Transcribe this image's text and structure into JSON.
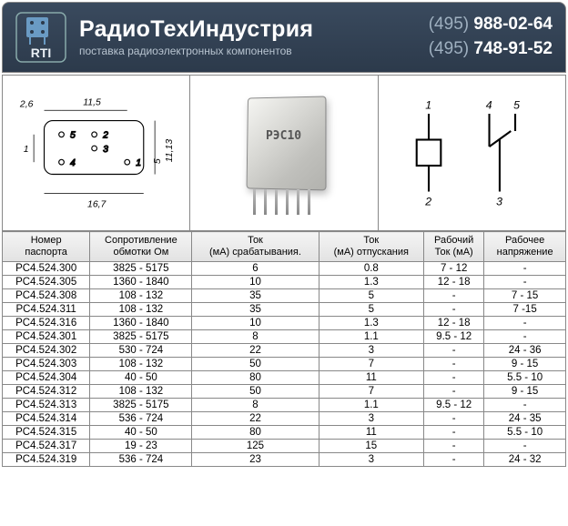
{
  "header": {
    "company_name": "РадиоТехИндустрия",
    "tagline": "поставка радиоэлектронных компонентов",
    "phones": [
      {
        "prefix": "(495)",
        "number": "988-02-64"
      },
      {
        "prefix": "(495)",
        "number": "748-91-52"
      }
    ],
    "logo_text": "RTI",
    "colors": {
      "header_bg_top": "#3a4a5e",
      "header_bg_bottom": "#2c3a4b",
      "text_light": "#ffffff",
      "text_muted": "#b8c4d0",
      "border": "#888888"
    }
  },
  "images": {
    "dimensions_drawing": {
      "values": [
        "2,6",
        "11,5",
        "16,7",
        "1",
        "5",
        "11,13"
      ],
      "pins": [
        "1",
        "2",
        "3",
        "4",
        "5"
      ]
    },
    "relay_label": "РЭС10",
    "schematic_pins": [
      "1",
      "2",
      "3",
      "4",
      "5"
    ]
  },
  "table": {
    "type": "table",
    "columns": [
      "Номер паспорта",
      "Сопротивление обмотки Ом",
      "Ток (мА) срабатывания.",
      "Ток (мА) отпускания",
      "Рабочий Ток (мА)",
      "Рабочее напряжение"
    ],
    "rows": [
      [
        "PC4.524.300",
        "3825 - 5175",
        "6",
        "0.8",
        "7 - 12",
        "-"
      ],
      [
        "PC4.524.305",
        "1360 - 1840",
        "10",
        "1.3",
        "12 - 18",
        "-"
      ],
      [
        "PC4.524.308",
        "108 - 132",
        "35",
        "5",
        "-",
        "7 - 15"
      ],
      [
        "PC4.524.311",
        "108 - 132",
        "35",
        "5",
        "-",
        "7 -15"
      ],
      [
        "PC4.524.316",
        "1360 - 1840",
        "10",
        "1.3",
        "12 - 18",
        "-"
      ],
      [
        "PC4.524.301",
        "3825 - 5175",
        "8",
        "1.1",
        "9.5 - 12",
        "-"
      ],
      [
        "PC4.524.302",
        "530 - 724",
        "22",
        "3",
        "-",
        "24 - 36"
      ],
      [
        "PC4.524.303",
        "108 - 132",
        "50",
        "7",
        "-",
        "9 - 15"
      ],
      [
        "PC4.524.304",
        "40 - 50",
        "80",
        "11",
        "-",
        "5.5 - 10"
      ],
      [
        "PC4.524.312",
        "108 - 132",
        "50",
        "7",
        "-",
        "9 - 15"
      ],
      [
        "PC4.524.313",
        "3825 - 5175",
        "8",
        "1.1",
        "9.5 - 12",
        "-"
      ],
      [
        "PC4.524.314",
        "536 - 724",
        "22",
        "3",
        "-",
        "24 - 35"
      ],
      [
        "PC4.524.315",
        "40 - 50",
        "80",
        "11",
        "-",
        "5.5 - 10"
      ],
      [
        "PC4.524.317",
        "19 - 23",
        "125",
        "15",
        "-",
        "-"
      ],
      [
        "PC4.524.319",
        "536 - 724",
        "23",
        "3",
        "-",
        "24 - 32"
      ]
    ],
    "header_bg": "#e8e8e8",
    "border_color": "#888888",
    "fontsize": 11.5
  }
}
